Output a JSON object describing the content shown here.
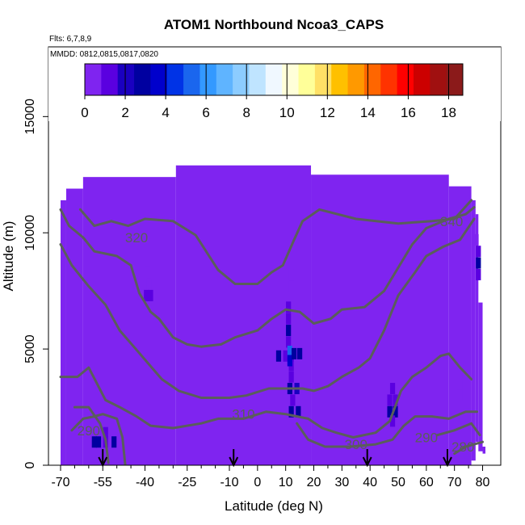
{
  "chart_data": {
    "type": "heatmap",
    "title": "ATOM1 Northbound Ncoa3_CAPS",
    "flights_text": "Flts: 6,7,8,9",
    "dates_text": "MMDD: 0812,0815,0817,0820",
    "xlabel": "Latitude (deg N)",
    "ylabel": "Altitude (m)",
    "xlim": [
      -70,
      81
    ],
    "ylim": [
      0,
      18000
    ],
    "x_ticks": [
      -70,
      -55,
      -40,
      -25,
      -10,
      0,
      10,
      20,
      30,
      40,
      50,
      60,
      70,
      80
    ],
    "x_tick_labels": [
      "-70",
      "-55",
      "-40",
      "-25",
      "-10",
      "0",
      "10",
      "20",
      "30",
      "40",
      "50",
      "60",
      "70",
      "80"
    ],
    "x_minor_ticks": [
      -65,
      -60,
      -50,
      -45,
      -35,
      -30,
      -20,
      -15,
      -5,
      5,
      15,
      25,
      35,
      45,
      55,
      65,
      75
    ],
    "y_ticks": [
      0,
      5000,
      10000,
      15000
    ],
    "y_tick_labels": [
      "0",
      "5000",
      "10000",
      "15000"
    ],
    "grid": false,
    "colorbar": {
      "range": [
        0,
        18.7
      ],
      "ticks": [
        0,
        2,
        4,
        6,
        8,
        10,
        12,
        14,
        16,
        18
      ],
      "tick_labels": [
        "0",
        "2",
        "4",
        "6",
        "8",
        "10",
        "12",
        "14",
        "16",
        "18"
      ],
      "colors": [
        "#7f24f0",
        "#5a00e0",
        "#1a00c0",
        "#0000a0",
        "#0000cc",
        "#0033e6",
        "#1a66ee",
        "#3399ff",
        "#5fb4ff",
        "#8cccff",
        "#bfe4ff",
        "#f0f8ff",
        "#ffffd9",
        "#ffff99",
        "#ffe066",
        "#ffc000",
        "#ff9900",
        "#ff6600",
        "#ff3300",
        "#ff0000",
        "#cc0000",
        "#a01010",
        "#8b1a1a"
      ]
    },
    "background_value": 0,
    "data_columns": [
      {
        "lat": [
          -70,
          -68
        ],
        "alt": [
          0,
          11400
        ]
      },
      {
        "lat": [
          -68,
          -62
        ],
        "alt": [
          0,
          11900
        ]
      },
      {
        "lat": [
          -62,
          -29
        ],
        "alt": [
          0,
          12400
        ]
      },
      {
        "lat": [
          -29,
          19
        ],
        "alt": [
          0,
          12900
        ]
      },
      {
        "lat": [
          19,
          68
        ],
        "alt": [
          0,
          12500
        ]
      },
      {
        "lat": [
          68,
          76
        ],
        "alt": [
          0,
          12000
        ]
      },
      {
        "lat": [
          76,
          77.5
        ],
        "alt": [
          200,
          11400
        ]
      },
      {
        "lat": [
          77.5,
          78.5
        ],
        "alt": [
          1000,
          10800
        ]
      },
      {
        "lat": [
          78.5,
          80
        ],
        "alt": [
          600,
          7000
        ]
      },
      {
        "lat": [
          80,
          81
        ],
        "alt": [
          500,
          800
        ]
      }
    ],
    "cells": [
      {
        "lat": -58,
        "alt": 1000,
        "value": 2.5
      },
      {
        "lat": -56.5,
        "alt": 1000,
        "value": 2.5
      },
      {
        "lat": -54,
        "alt": 1000,
        "value": 1.0
      },
      {
        "lat": -51,
        "alt": 1000,
        "value": 2.5
      },
      {
        "lat": -54,
        "alt": 1400,
        "value": 1.0
      },
      {
        "lat": -39.5,
        "alt": 7300,
        "value": 1.0
      },
      {
        "lat": -38,
        "alt": 7300,
        "value": 1.0
      },
      {
        "lat": -38.5,
        "alt": 7800,
        "value": 0.6
      },
      {
        "lat": -39,
        "alt": 8300,
        "value": 0.6
      },
      {
        "lat": -38,
        "alt": 4200,
        "value": 0.5
      },
      {
        "lat": 11,
        "alt": 5300,
        "value": 1.0
      },
      {
        "lat": 11,
        "alt": 5800,
        "value": 2.5
      },
      {
        "lat": 11,
        "alt": 6300,
        "value": 1.0
      },
      {
        "lat": 11,
        "alt": 6800,
        "value": 1.0
      },
      {
        "lat": 7.5,
        "alt": 4700,
        "value": 2.5
      },
      {
        "lat": 10,
        "alt": 4700,
        "value": 1.0
      },
      {
        "lat": 12,
        "alt": 4700,
        "value": 2.0
      },
      {
        "lat": 12,
        "alt": 4300,
        "value": 1.0
      },
      {
        "lat": 11.5,
        "alt": 4900,
        "value": 5.0
      },
      {
        "lat": 11.5,
        "alt": 4500,
        "value": 4.0
      },
      {
        "lat": 13,
        "alt": 4800,
        "value": 2.5
      },
      {
        "lat": 15,
        "alt": 4800,
        "value": 2.5
      },
      {
        "lat": 12,
        "alt": 3800,
        "value": 1.0
      },
      {
        "lat": 11.5,
        "alt": 3300,
        "value": 2.5
      },
      {
        "lat": 14,
        "alt": 3300,
        "value": 2.0
      },
      {
        "lat": 12.5,
        "alt": 2800,
        "value": 1.0
      },
      {
        "lat": 12,
        "alt": 2300,
        "value": 2.5
      },
      {
        "lat": 14.5,
        "alt": 2300,
        "value": 2.5
      },
      {
        "lat": 12,
        "alt": 7700,
        "value": 0.6
      },
      {
        "lat": 12,
        "alt": 8200,
        "value": 0.6
      },
      {
        "lat": 47,
        "alt": 2300,
        "value": 2.5
      },
      {
        "lat": 49,
        "alt": 2300,
        "value": 2.5
      },
      {
        "lat": 47,
        "alt": 2800,
        "value": 1.0
      },
      {
        "lat": 49,
        "alt": 2800,
        "value": 1.0
      },
      {
        "lat": 48,
        "alt": 3300,
        "value": 1.0
      },
      {
        "lat": 48,
        "alt": 1900,
        "value": 1.0
      },
      {
        "lat": 72,
        "alt": 3500,
        "value": 0.6
      },
      {
        "lat": 72,
        "alt": 4000,
        "value": 0.6
      },
      {
        "lat": 72,
        "alt": 3000,
        "value": 0.5
      },
      {
        "lat": 78.5,
        "alt": 8200,
        "value": 1.0
      },
      {
        "lat": 78.5,
        "alt": 8700,
        "value": 2.5
      },
      {
        "lat": 78.5,
        "alt": 9200,
        "value": 1.0
      },
      {
        "lat": 77.7,
        "alt": 9700,
        "value": 0.6
      }
    ],
    "contours": [
      {
        "label": "340",
        "label_at": [
          69,
          10500
        ],
        "points": [
          [
            -63,
            11000
          ],
          [
            -58,
            10300
          ],
          [
            -52,
            10500
          ],
          [
            -46,
            10300
          ],
          [
            -40,
            10600
          ],
          [
            -30,
            10500
          ],
          [
            -22,
            9900
          ],
          [
            -14,
            8400
          ],
          [
            -8,
            7800
          ],
          [
            0,
            7800
          ],
          [
            5,
            8300
          ],
          [
            9,
            8600
          ],
          [
            13,
            9700
          ],
          [
            16,
            10500
          ],
          [
            22,
            11000
          ],
          [
            35,
            10600
          ],
          [
            50,
            10400
          ],
          [
            62,
            10500
          ],
          [
            70,
            10600
          ],
          [
            76,
            11400
          ]
        ]
      },
      {
        "label": "320",
        "label_at": [
          -43,
          9800
        ],
        "points": [
          [
            -70,
            11000
          ],
          [
            -67,
            10300
          ],
          [
            -62,
            9800
          ],
          [
            -58,
            9200
          ],
          [
            -50,
            9000
          ],
          [
            -45,
            8600
          ],
          [
            -42,
            7400
          ],
          [
            -38,
            6600
          ],
          [
            -35,
            6300
          ],
          [
            -30,
            5500
          ],
          [
            -25,
            5200
          ],
          [
            -20,
            5100
          ],
          [
            -13,
            5200
          ],
          [
            -8,
            5500
          ],
          [
            0,
            5800
          ],
          [
            5,
            6300
          ],
          [
            10,
            6700
          ],
          [
            15,
            6600
          ],
          [
            20,
            6100
          ],
          [
            26,
            6300
          ],
          [
            30,
            6700
          ],
          [
            38,
            6800
          ],
          [
            45,
            7500
          ],
          [
            50,
            8500
          ],
          [
            55,
            9500
          ],
          [
            60,
            10200
          ],
          [
            68,
            10600
          ],
          [
            74,
            10800
          ],
          [
            77,
            11100
          ]
        ]
      },
      {
        "label": "",
        "label_at": null,
        "points": [
          [
            -70,
            9500
          ],
          [
            -66,
            8600
          ],
          [
            -60,
            7700
          ],
          [
            -54,
            6900
          ],
          [
            -49,
            5800
          ],
          [
            -44,
            5100
          ],
          [
            -39,
            4400
          ],
          [
            -34,
            3700
          ],
          [
            -28,
            3200
          ],
          [
            -20,
            2900
          ],
          [
            -10,
            2900
          ],
          [
            -4,
            3000
          ],
          [
            4,
            3300
          ],
          [
            10,
            3300
          ],
          [
            16,
            3300
          ],
          [
            20,
            3200
          ],
          [
            25,
            3400
          ],
          [
            30,
            3800
          ],
          [
            36,
            4200
          ],
          [
            40,
            4600
          ],
          [
            45,
            5800
          ],
          [
            50,
            7300
          ],
          [
            56,
            8300
          ],
          [
            60,
            9000
          ],
          [
            66,
            9400
          ],
          [
            72,
            9700
          ],
          [
            77,
            10600
          ]
        ]
      },
      {
        "label": "310",
        "label_at": [
          -5,
          2200
        ],
        "points": [
          [
            -70,
            3800
          ],
          [
            -64,
            3800
          ],
          [
            -60,
            4200
          ],
          [
            -57,
            3500
          ],
          [
            -54,
            2800
          ],
          [
            -49,
            2500
          ],
          [
            -43,
            2100
          ],
          [
            -38,
            1700
          ],
          [
            -30,
            1600
          ],
          [
            -20,
            1800
          ],
          [
            -14,
            2000
          ],
          [
            -5,
            2000
          ],
          [
            3,
            2300
          ],
          [
            10,
            2200
          ],
          [
            18,
            2000
          ],
          [
            23,
            1600
          ],
          [
            28,
            1400
          ],
          [
            34,
            1200
          ],
          [
            42,
            1400
          ],
          [
            47,
            1900
          ],
          [
            51,
            3200
          ],
          [
            55,
            3800
          ],
          [
            60,
            4200
          ],
          [
            65,
            4700
          ],
          [
            68,
            4800
          ],
          [
            72,
            4200
          ],
          [
            76,
            3700
          ]
        ]
      },
      {
        "label": "300",
        "label_at": [
          35,
          900
        ],
        "points": [
          [
            -65,
            2500
          ],
          [
            -60,
            2500
          ],
          [
            -56,
            1800
          ],
          [
            -54,
            1100
          ],
          [
            -53,
            100
          ]
        ]
      },
      {
        "label": "",
        "label_at": null,
        "points": [
          [
            14,
            1800
          ],
          [
            18,
            1100
          ],
          [
            24,
            800
          ],
          [
            33,
            800
          ],
          [
            42,
            900
          ],
          [
            48,
            1100
          ],
          [
            52,
            1700
          ],
          [
            56,
            2100
          ],
          [
            62,
            2100
          ],
          [
            68,
            2000
          ],
          [
            74,
            2300
          ],
          [
            78,
            2300
          ]
        ]
      },
      {
        "label": "290",
        "label_at": [
          -60,
          1500
        ],
        "points": [
          [
            -66,
            1500
          ],
          [
            -62,
            2000
          ],
          [
            -58,
            2100
          ],
          [
            -55,
            2200
          ],
          [
            -50,
            2000
          ],
          [
            -48,
            1200
          ],
          [
            -47,
            0
          ]
        ]
      },
      {
        "label": "290",
        "label_at": [
          60,
          1200
        ],
        "points": [
          [
            64,
            1300
          ],
          [
            70,
            1500
          ],
          [
            76,
            1800
          ],
          [
            79,
            1300
          ]
        ]
      },
      {
        "label": "280",
        "label_at": [
          73,
          800
        ],
        "points": [
          [
            70,
            500
          ],
          [
            74,
            800
          ],
          [
            77,
            900
          ],
          [
            80,
            1000
          ]
        ]
      }
    ],
    "arrows_lat": [
      -55,
      -8.5,
      39,
      67.5
    ]
  }
}
